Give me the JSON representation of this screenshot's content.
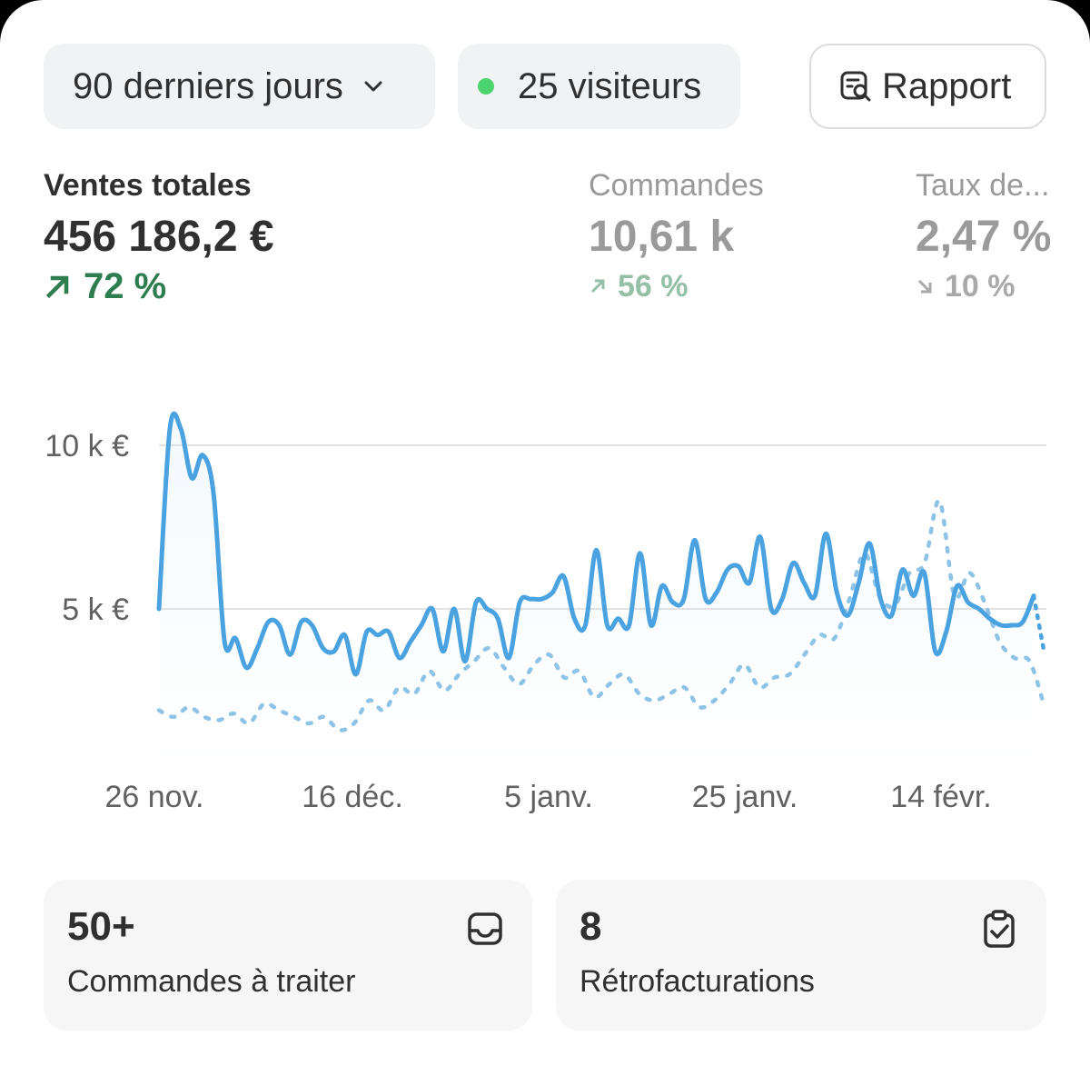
{
  "filters": {
    "range_label": "90 derniers jours",
    "visitors_label": "25 visiteurs",
    "visitors_dot_color": "#4cd471",
    "report_label": "Rapport"
  },
  "metrics": [
    {
      "label": "Ventes totales",
      "value": "456 186,2 €",
      "change": "72 %",
      "direction": "up"
    },
    {
      "label": "Commandes",
      "value": "10,61 k",
      "change": "56 %",
      "direction": "up"
    },
    {
      "label": "Taux de...",
      "value": "2,47 %",
      "change": "10 %",
      "direction": "down"
    }
  ],
  "chart_data": {
    "type": "line",
    "yticks": [
      "10 k €",
      "5 k €"
    ],
    "ylim": [
      0,
      12000
    ],
    "x_tick_labels": [
      "26 nov.",
      "16 déc.",
      "5 janv.",
      "25 janv.",
      "14 févr."
    ],
    "grid": true,
    "colors": {
      "current": "#4aa3e0",
      "comparison": "#8cc3e6"
    },
    "series": [
      {
        "style": "solid",
        "values": [
          5000,
          10500,
          10500,
          9000,
          9700,
          8500,
          4000,
          4100,
          3200,
          3800,
          4600,
          4500,
          3600,
          4600,
          4500,
          3800,
          3700,
          4200,
          3000,
          4300,
          4200,
          4300,
          3500,
          4000,
          4500,
          5000,
          3700,
          5000,
          3400,
          5200,
          5000,
          4700,
          3500,
          5200,
          5300,
          5300,
          5500,
          6000,
          4700,
          4500,
          6800,
          4500,
          4700,
          4500,
          6700,
          4500,
          5700,
          5200,
          5300,
          7100,
          5300,
          5500,
          6200,
          6300,
          5800,
          7200,
          5000,
          5300,
          6400,
          5800,
          5400,
          7300,
          5500,
          4800,
          5800,
          7000,
          5300,
          4800,
          6200,
          5400,
          6100,
          3700,
          4300,
          5700,
          5200,
          5000,
          4700,
          4500,
          4500,
          4600,
          5400,
          3600
        ]
      },
      {
        "style": "dotted",
        "values": [
          1900,
          1700,
          2000,
          1700,
          1600,
          1800,
          1500,
          2100,
          1900,
          1700,
          1500,
          1700,
          1300,
          1500,
          2200,
          1900,
          2600,
          2400,
          3100,
          2500,
          3000,
          3400,
          3800,
          3200,
          2700,
          3300,
          3600,
          2900,
          3100,
          2300,
          2700,
          3000,
          2400,
          2200,
          2400,
          2600,
          2000,
          2200,
          2700,
          3300,
          2600,
          2900,
          3000,
          3600,
          4200,
          4100,
          5300,
          6700,
          5400,
          5100,
          6100,
          6400,
          8300,
          5400,
          6100,
          5200,
          4000,
          3500,
          3400,
          2000
        ]
      }
    ]
  },
  "cards": [
    {
      "value": "50+",
      "label": "Commandes à traiter",
      "icon": "inbox-icon"
    },
    {
      "value": "8",
      "label": "Rétrofacturations",
      "icon": "clipboard-check-icon"
    }
  ]
}
